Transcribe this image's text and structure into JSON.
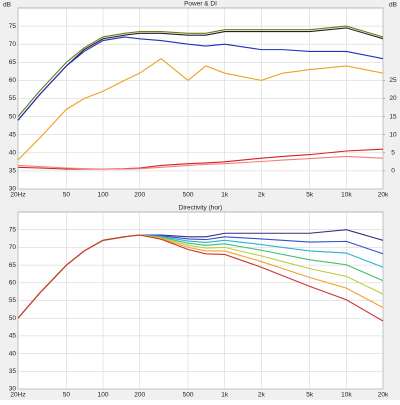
{
  "chart_data": [
    {
      "type": "line",
      "title": "Power & DI",
      "ylabel": "dB",
      "y2label": "dB",
      "log_x": true,
      "grid": true,
      "x": [
        20,
        30,
        50,
        70,
        100,
        150,
        200,
        300,
        500,
        700,
        1000,
        2000,
        3000,
        5000,
        10000,
        20000
      ],
      "xlim": [
        20,
        20000
      ],
      "xticks": [
        {
          "value": 20,
          "label": "20Hz"
        },
        50,
        100,
        200,
        500,
        {
          "value": 1000,
          "label": "1k"
        },
        {
          "value": 2000,
          "label": "2k"
        },
        {
          "value": 5000,
          "label": "5k"
        },
        {
          "value": 10000,
          "label": "10k"
        },
        {
          "value": 20000,
          "label": "20k"
        }
      ],
      "ylim": [
        30,
        80
      ],
      "yticks": [
        30,
        35,
        40,
        45,
        50,
        55,
        60,
        65,
        70,
        75
      ],
      "y2lim": [
        -5,
        45
      ],
      "y2ticks": [
        0,
        5,
        10,
        15,
        20,
        25
      ],
      "series": [
        {
          "color": "#6b7a1e",
          "values": [
            50,
            57,
            65,
            69,
            72,
            73,
            73.5,
            73.5,
            73,
            73,
            74,
            74,
            74,
            74,
            75,
            72
          ]
        },
        {
          "color": "#222222",
          "values": [
            49,
            56,
            64,
            68.5,
            71.5,
            72.5,
            73,
            73,
            72.5,
            72.5,
            73.5,
            73.5,
            73.5,
            73.5,
            74.5,
            71.5
          ]
        },
        {
          "color": "#1f2fbf",
          "values": [
            49,
            56,
            64,
            68,
            71,
            72,
            71.5,
            71,
            70,
            69.5,
            70,
            68.5,
            68.5,
            68,
            68,
            66
          ]
        },
        {
          "color": "#f0a020",
          "values": [
            38,
            44,
            52,
            55,
            57,
            60,
            62,
            66,
            60,
            64,
            62,
            60,
            62,
            63,
            64,
            62
          ]
        },
        {
          "color": "#d42020",
          "axis": "y2",
          "values": [
            1,
            0.8,
            0.5,
            0.5,
            0.5,
            0.6,
            0.8,
            1.5,
            2,
            2.2,
            2.5,
            3.5,
            4,
            4.5,
            5.5,
            6
          ]
        },
        {
          "color": "#f08080",
          "axis": "y2",
          "values": [
            1.5,
            1.2,
            0.8,
            0.6,
            0.5,
            0.5,
            0.6,
            1,
            1.5,
            1.8,
            2,
            2.6,
            3,
            3.4,
            4,
            3.5
          ]
        }
      ]
    },
    {
      "type": "line",
      "title": "Directivity (hor)",
      "log_x": true,
      "grid": true,
      "x": [
        20,
        30,
        50,
        70,
        100,
        150,
        200,
        300,
        500,
        700,
        1000,
        2000,
        3000,
        5000,
        10000,
        20000
      ],
      "xlim": [
        20,
        20000
      ],
      "xticks": [
        {
          "value": 20,
          "label": "20Hz"
        },
        50,
        100,
        200,
        500,
        {
          "value": 1000,
          "label": "1k"
        },
        {
          "value": 2000,
          "label": "2k"
        },
        {
          "value": 5000,
          "label": "5k"
        },
        {
          "value": 10000,
          "label": "10k"
        },
        {
          "value": 20000,
          "label": "20k"
        }
      ],
      "ylim": [
        30,
        80
      ],
      "yticks": [
        30,
        35,
        40,
        45,
        50,
        55,
        60,
        65,
        70,
        75
      ],
      "series": [
        {
          "color": "#3a2a80",
          "values": [
            50,
            57,
            65,
            69,
            72,
            73,
            73.5,
            73.5,
            73,
            73,
            74,
            74,
            74,
            74,
            75,
            72
          ]
        },
        {
          "color": "#3050d0",
          "values": [
            50,
            57,
            65,
            69,
            72,
            73,
            73.5,
            73.3,
            72.4,
            72.2,
            73,
            72.4,
            72,
            71.5,
            71.7,
            68.2
          ]
        },
        {
          "color": "#30b0d8",
          "values": [
            50,
            57,
            65,
            69,
            72,
            73,
            73.5,
            73.1,
            71.8,
            71.4,
            72,
            70.8,
            70,
            69,
            68.4,
            64.4
          ]
        },
        {
          "color": "#40c070",
          "values": [
            50,
            57,
            65,
            69,
            72,
            73,
            73.5,
            72.9,
            71.2,
            70.6,
            71,
            69.2,
            68,
            66.5,
            65.1,
            60.6
          ]
        },
        {
          "color": "#b8d040",
          "values": [
            50,
            57,
            65,
            69,
            72,
            73,
            73.5,
            72.7,
            70.6,
            69.8,
            70,
            67.6,
            66,
            64,
            61.8,
            56.8
          ]
        },
        {
          "color": "#f0a030",
          "values": [
            50,
            57,
            65,
            69,
            72,
            73,
            73.5,
            72.5,
            70,
            69,
            69,
            66,
            64,
            61.5,
            58.5,
            53
          ]
        },
        {
          "color": "#d03030",
          "values": [
            50,
            57,
            65,
            69,
            72,
            73,
            73.5,
            72.3,
            69.4,
            68.2,
            68,
            64.4,
            62,
            59,
            55.2,
            49.2
          ]
        }
      ]
    }
  ]
}
